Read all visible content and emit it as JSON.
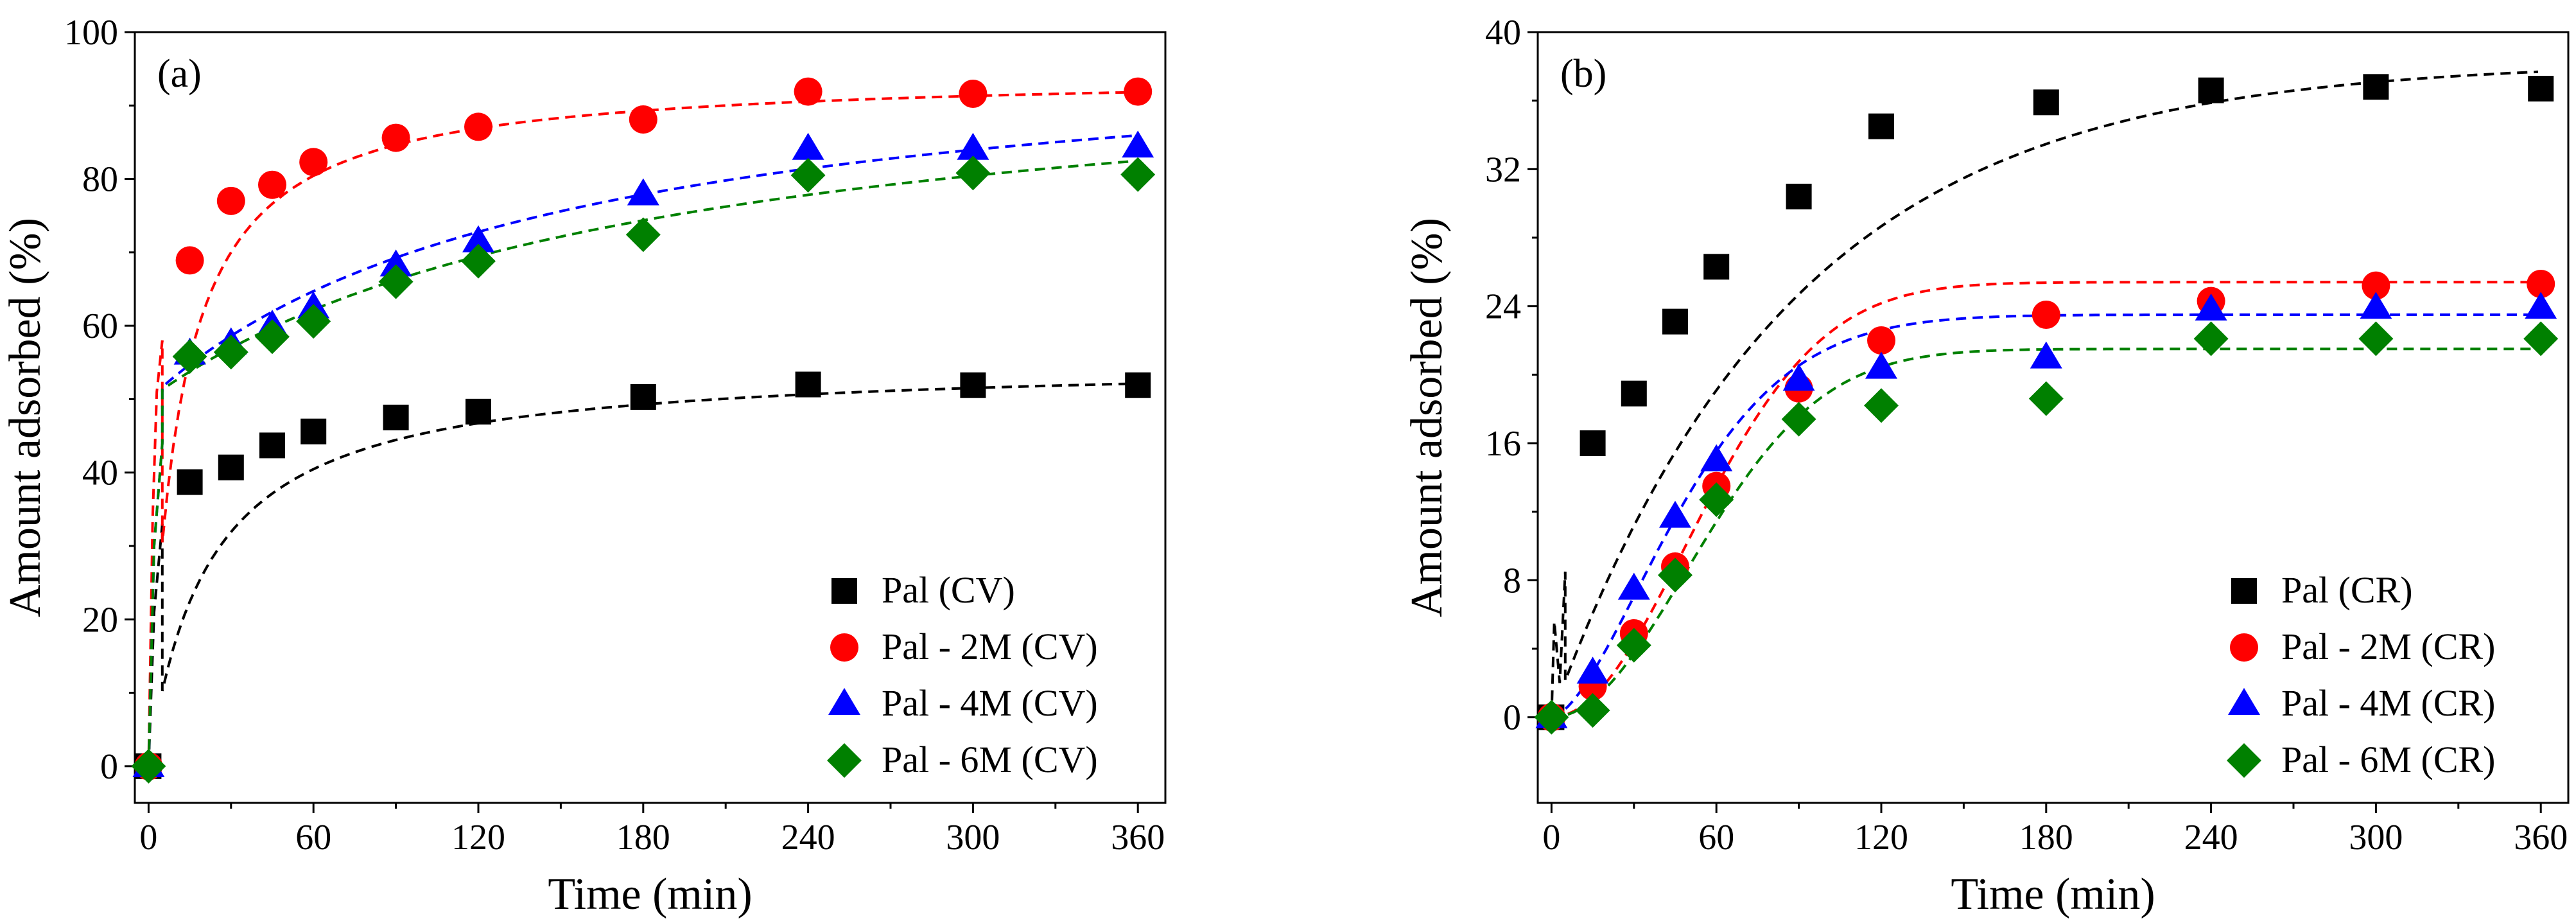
{
  "chart_data": [
    {
      "type": "scatter",
      "panel_label": "(a)",
      "xlabel": "Time (min)",
      "ylabel": "Amount adsorbed (%)",
      "xlim": [
        -5,
        370
      ],
      "ylim": [
        -5,
        100
      ],
      "xticks": [
        0,
        60,
        120,
        180,
        240,
        300,
        360
      ],
      "yticks": [
        0,
        20,
        40,
        60,
        80,
        100
      ],
      "grid": false,
      "legend_position": "bottom-right",
      "series": [
        {
          "name": "Pal (CV)",
          "marker": "square",
          "color": "#000000",
          "x": [
            0,
            15,
            30,
            45,
            60,
            90,
            120,
            180,
            240,
            300,
            360
          ],
          "values": [
            0,
            38.7,
            40.7,
            43.7,
            45.6,
            47.5,
            48.3,
            50.3,
            52.0,
            51.9,
            51.9
          ],
          "fit": {
            "model": "hyperbolic",
            "a": 0,
            "b": 55.3,
            "k": 22,
            "start": 5,
            "hook": [
              [
                0,
                0
              ],
              [
                2,
                21
              ],
              [
                5,
                33
              ]
            ]
          }
        },
        {
          "name": "Pal - 2M (CV)",
          "marker": "circle",
          "color": "#ff0000",
          "x": [
            0,
            15,
            30,
            45,
            60,
            90,
            120,
            180,
            240,
            300,
            360
          ],
          "values": [
            0,
            68.9,
            77.0,
            79.2,
            82.3,
            85.6,
            87.1,
            88.1,
            91.9,
            91.6,
            91.9
          ],
          "fit": {
            "model": "hyperbolic",
            "a": 0,
            "b": 94.5,
            "k": 10.5,
            "start": 5,
            "hook": [
              [
                0,
                0
              ],
              [
                1.5,
                34
              ],
              [
                3,
                51
              ],
              [
                5,
                58
              ]
            ]
          }
        },
        {
          "name": "Pal - 4M (CV)",
          "marker": "triangle",
          "color": "#0000ff",
          "x": [
            0,
            15,
            30,
            45,
            60,
            90,
            120,
            180,
            240,
            300,
            360
          ],
          "values": [
            0,
            56.2,
            57.6,
            60.0,
            62.5,
            68.2,
            71.5,
            77.9,
            84.1,
            84.1,
            84.4
          ],
          "fit": {
            "model": "hyperbolic",
            "a": 50,
            "b": 50.5,
            "k": 146,
            "start": 5,
            "hook": [
              [
                0,
                0
              ],
              [
                2,
                30
              ],
              [
                5,
                44
              ]
            ]
          }
        },
        {
          "name": "Pal - 6M (CV)",
          "marker": "diamond",
          "color": "#008000",
          "x": [
            0,
            15,
            30,
            45,
            60,
            90,
            120,
            180,
            240,
            300,
            360
          ],
          "values": [
            0,
            55.8,
            56.4,
            58.5,
            60.6,
            66.0,
            68.8,
            72.4,
            80.5,
            80.8,
            80.6
          ],
          "fit": {
            "model": "hyperbolic",
            "a": 50,
            "b": 48.7,
            "k": 180,
            "start": 5,
            "hook": [
              [
                0,
                0
              ],
              [
                2,
                30
              ],
              [
                5,
                44
              ]
            ]
          }
        }
      ]
    },
    {
      "type": "scatter",
      "panel_label": "(b)",
      "xlabel": "Time (min)",
      "ylabel": "Amount adsorbed (%)",
      "xlim": [
        -5,
        370
      ],
      "ylim": [
        -5,
        40
      ],
      "xticks": [
        0,
        60,
        120,
        180,
        240,
        300,
        360
      ],
      "yticks": [
        0,
        8,
        16,
        24,
        32,
        40
      ],
      "grid": false,
      "legend_position": "bottom-right",
      "series": [
        {
          "name": "Pal (CR)",
          "marker": "square",
          "color": "#000000",
          "x": [
            0,
            15,
            30,
            45,
            60,
            90,
            120,
            180,
            240,
            300,
            360
          ],
          "values": [
            0,
            16.0,
            18.9,
            23.1,
            26.3,
            30.4,
            34.5,
            35.9,
            36.6,
            36.8,
            36.7
          ],
          "fit": {
            "model": "exponential",
            "qe": 38.3,
            "k": 0.0115,
            "start": 5,
            "hook": [
              [
                0,
                0
              ],
              [
                1,
                5.6
              ],
              [
                3,
                2
              ],
              [
                5,
                8.5
              ]
            ]
          }
        },
        {
          "name": "Pal - 2M (CR)",
          "marker": "circle",
          "color": "#ff0000",
          "x": [
            0,
            15,
            30,
            45,
            60,
            90,
            120,
            180,
            240,
            300,
            360
          ],
          "values": [
            0,
            1.8,
            4.9,
            8.8,
            13.5,
            19.2,
            22.0,
            23.5,
            24.3,
            25.2,
            25.3
          ],
          "fit": {
            "model": "sigmoid",
            "qe": 25.4,
            "k": 0.0145,
            "n": 2.0,
            "start": 0,
            "hook": []
          }
        },
        {
          "name": "Pal - 4M (CR)",
          "marker": "triangle",
          "color": "#0000ff",
          "x": [
            0,
            15,
            30,
            45,
            60,
            90,
            120,
            180,
            240,
            300,
            360
          ],
          "values": [
            0,
            2.6,
            7.5,
            11.7,
            15.0,
            19.7,
            20.4,
            21.0,
            23.8,
            23.9,
            23.9
          ],
          "fit": {
            "model": "sigmoid",
            "qe": 23.5,
            "k": 0.0175,
            "n": 1.6,
            "start": 0,
            "hook": []
          }
        },
        {
          "name": "Pal - 6M (CR)",
          "marker": "diamond",
          "color": "#008000",
          "x": [
            0,
            15,
            30,
            45,
            60,
            90,
            120,
            180,
            240,
            300,
            360
          ],
          "values": [
            0,
            0.4,
            4.2,
            8.3,
            12.7,
            17.4,
            18.2,
            18.6,
            22.1,
            22.1,
            22.1
          ],
          "fit": {
            "model": "sigmoid",
            "qe": 21.5,
            "k": 0.0145,
            "n": 2.0,
            "start": 0,
            "hook": []
          }
        }
      ]
    }
  ]
}
